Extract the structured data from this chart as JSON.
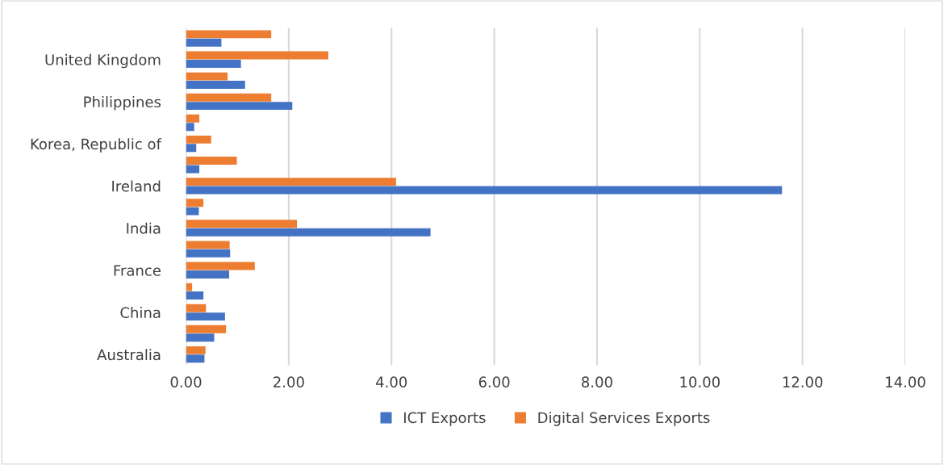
{
  "chart_data": {
    "type": "bar",
    "orientation": "horizontal",
    "categories": [
      null,
      "United Kingdom",
      null,
      "Philippines",
      null,
      "Korea, Republic of",
      null,
      "Ireland",
      null,
      "India",
      null,
      "France",
      null,
      "China",
      null,
      "Australia"
    ],
    "series": [
      {
        "name": "Digital Services Exports",
        "color": "#ed7d31",
        "values": [
          1.66,
          2.77,
          0.81,
          1.66,
          0.26,
          0.49,
          0.99,
          4.09,
          0.34,
          2.16,
          0.85,
          1.34,
          0.12,
          0.39,
          0.78,
          0.38
        ]
      },
      {
        "name": "ICT Exports",
        "color": "#4472c4",
        "values": [
          0.69,
          1.07,
          1.15,
          2.07,
          0.16,
          0.2,
          0.26,
          11.6,
          0.25,
          4.76,
          0.86,
          0.84,
          0.34,
          0.76,
          0.55,
          0.36
        ]
      }
    ],
    "xlim": [
      0,
      14
    ],
    "xticks": [
      {
        "value": 0,
        "label": "0.00"
      },
      {
        "value": 2,
        "label": "2.00"
      },
      {
        "value": 4,
        "label": "4.00"
      },
      {
        "value": 6,
        "label": "6.00"
      },
      {
        "value": 8,
        "label": "8.00"
      },
      {
        "value": 10,
        "label": "10.00"
      },
      {
        "value": 12,
        "label": "12.00"
      },
      {
        "value": 14,
        "label": "14.00"
      }
    ],
    "grid": "x",
    "legend": "bottom"
  }
}
